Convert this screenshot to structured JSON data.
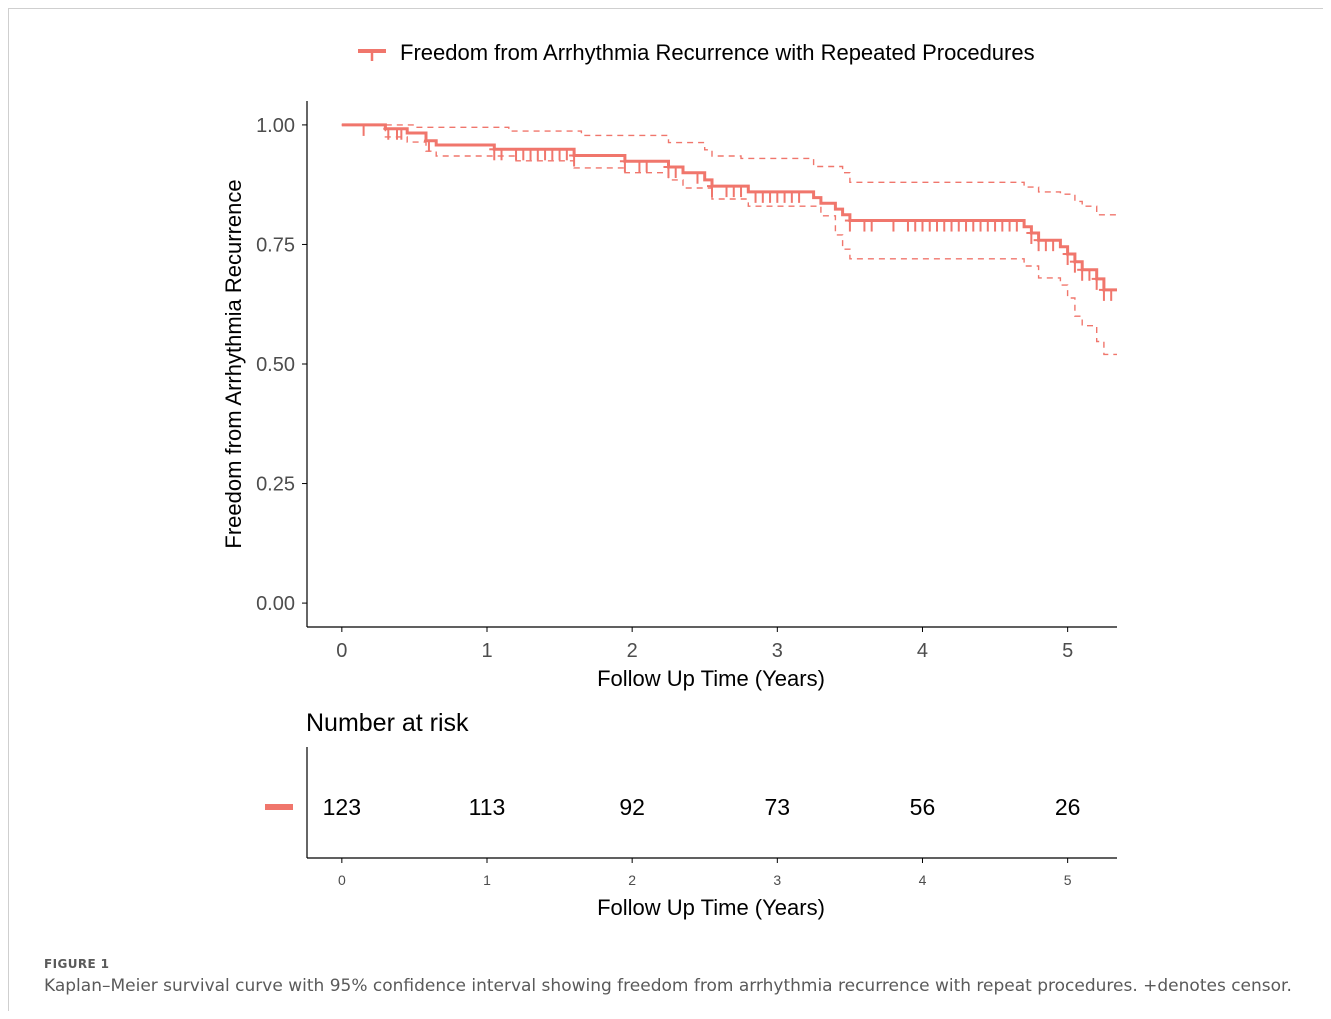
{
  "figure": {
    "label": "FIGURE 1",
    "caption": "Kaplan–Meier survival curve with 95% confidence interval showing freedom from arrhythmia recurrence with repeat procedures. +denotes censor."
  },
  "colors": {
    "series": "#f0766c",
    "axis": "#000000",
    "tick_text": "#4d4d4d",
    "caption": "#5a5a5a"
  },
  "chart_data": [
    {
      "type": "line",
      "subtype": "kaplan-meier step curve with 95% CI and censor marks",
      "legend": {
        "position": "top",
        "entries": [
          "Freedom from Arrhythmia Recurrence with Repeated Procedures"
        ]
      },
      "xlabel": "Follow Up Time (Years)",
      "ylabel": "Freedom from Arrhythmia Recurrence",
      "xlim": [
        -0.24,
        5.34
      ],
      "ylim": [
        -0.05,
        1.05
      ],
      "xticks": [
        "0",
        "1",
        "2",
        "3",
        "4",
        "5"
      ],
      "yticks": [
        "0.00",
        "0.25",
        "0.50",
        "0.75",
        "1.00"
      ],
      "grid": false,
      "series": [
        {
          "name": "Freedom from Arrhythmia Recurrence with Repeated Procedures",
          "style": "solid",
          "points": [
            [
              0,
              1.0
            ],
            [
              0.3,
              1.0
            ],
            [
              0.3,
              0.992
            ],
            [
              0.45,
              0.992
            ],
            [
              0.45,
              0.983
            ],
            [
              0.58,
              0.983
            ],
            [
              0.58,
              0.967
            ],
            [
              0.65,
              0.967
            ],
            [
              0.65,
              0.958
            ],
            [
              1.05,
              0.958
            ],
            [
              1.05,
              0.949
            ],
            [
              1.6,
              0.949
            ],
            [
              1.6,
              0.936
            ],
            [
              1.95,
              0.936
            ],
            [
              1.95,
              0.924
            ],
            [
              2.25,
              0.924
            ],
            [
              2.25,
              0.912
            ],
            [
              2.35,
              0.912
            ],
            [
              2.35,
              0.9
            ],
            [
              2.5,
              0.9
            ],
            [
              2.5,
              0.885
            ],
            [
              2.55,
              0.885
            ],
            [
              2.55,
              0.872
            ],
            [
              2.8,
              0.872
            ],
            [
              2.8,
              0.86
            ],
            [
              3.25,
              0.86
            ],
            [
              3.25,
              0.848
            ],
            [
              3.3,
              0.848
            ],
            [
              3.3,
              0.836
            ],
            [
              3.4,
              0.836
            ],
            [
              3.4,
              0.824
            ],
            [
              3.45,
              0.824
            ],
            [
              3.45,
              0.812
            ],
            [
              3.5,
              0.812
            ],
            [
              3.5,
              0.8
            ],
            [
              4.7,
              0.8
            ],
            [
              4.7,
              0.787
            ],
            [
              4.75,
              0.787
            ],
            [
              4.75,
              0.774
            ],
            [
              4.8,
              0.774
            ],
            [
              4.8,
              0.759
            ],
            [
              4.95,
              0.759
            ],
            [
              4.95,
              0.745
            ],
            [
              5.0,
              0.745
            ],
            [
              5.0,
              0.73
            ],
            [
              5.05,
              0.73
            ],
            [
              5.05,
              0.714
            ],
            [
              5.1,
              0.714
            ],
            [
              5.1,
              0.697
            ],
            [
              5.2,
              0.697
            ],
            [
              5.2,
              0.678
            ],
            [
              5.25,
              0.678
            ],
            [
              5.25,
              0.655
            ],
            [
              5.34,
              0.655
            ]
          ]
        },
        {
          "name": "",
          "style": "dashed",
          "points": [
            [
              0,
              1.0
            ],
            [
              0.5,
              1.0
            ],
            [
              0.5,
              0.995
            ],
            [
              1.15,
              0.995
            ],
            [
              1.15,
              0.987
            ],
            [
              1.65,
              0.987
            ],
            [
              1.65,
              0.978
            ],
            [
              2.25,
              0.978
            ],
            [
              2.25,
              0.963
            ],
            [
              2.5,
              0.963
            ],
            [
              2.5,
              0.948
            ],
            [
              2.55,
              0.948
            ],
            [
              2.55,
              0.935
            ],
            [
              2.75,
              0.935
            ],
            [
              2.75,
              0.93
            ],
            [
              3.25,
              0.93
            ],
            [
              3.25,
              0.913
            ],
            [
              3.45,
              0.913
            ],
            [
              3.45,
              0.9
            ],
            [
              3.5,
              0.9
            ],
            [
              3.5,
              0.88
            ],
            [
              4.7,
              0.88
            ],
            [
              4.7,
              0.87
            ],
            [
              4.8,
              0.87
            ],
            [
              4.8,
              0.86
            ],
            [
              4.95,
              0.86
            ],
            [
              4.95,
              0.855
            ],
            [
              5.05,
              0.855
            ],
            [
              5.05,
              0.84
            ],
            [
              5.1,
              0.84
            ],
            [
              5.1,
              0.83
            ],
            [
              5.2,
              0.83
            ],
            [
              5.2,
              0.812
            ],
            [
              5.34,
              0.812
            ]
          ]
        },
        {
          "name": "",
          "style": "dashed",
          "points": [
            [
              0,
              1.0
            ],
            [
              0.3,
              1.0
            ],
            [
              0.3,
              0.975
            ],
            [
              0.45,
              0.975
            ],
            [
              0.45,
              0.964
            ],
            [
              0.58,
              0.964
            ],
            [
              0.58,
              0.945
            ],
            [
              0.65,
              0.945
            ],
            [
              0.65,
              0.935
            ],
            [
              1.2,
              0.935
            ],
            [
              1.2,
              0.925
            ],
            [
              1.6,
              0.925
            ],
            [
              1.6,
              0.91
            ],
            [
              1.95,
              0.91
            ],
            [
              1.95,
              0.9
            ],
            [
              2.25,
              0.9
            ],
            [
              2.25,
              0.885
            ],
            [
              2.35,
              0.885
            ],
            [
              2.35,
              0.868
            ],
            [
              2.55,
              0.868
            ],
            [
              2.55,
              0.845
            ],
            [
              2.8,
              0.845
            ],
            [
              2.8,
              0.83
            ],
            [
              3.3,
              0.83
            ],
            [
              3.3,
              0.81
            ],
            [
              3.4,
              0.81
            ],
            [
              3.4,
              0.77
            ],
            [
              3.45,
              0.77
            ],
            [
              3.45,
              0.74
            ],
            [
              3.5,
              0.74
            ],
            [
              3.5,
              0.72
            ],
            [
              4.7,
              0.72
            ],
            [
              4.7,
              0.705
            ],
            [
              4.8,
              0.705
            ],
            [
              4.8,
              0.68
            ],
            [
              4.95,
              0.68
            ],
            [
              4.95,
              0.665
            ],
            [
              5.0,
              0.665
            ],
            [
              5.0,
              0.638
            ],
            [
              5.05,
              0.638
            ],
            [
              5.05,
              0.6
            ],
            [
              5.1,
              0.6
            ],
            [
              5.1,
              0.58
            ],
            [
              5.2,
              0.58
            ],
            [
              5.2,
              0.547
            ],
            [
              5.25,
              0.547
            ],
            [
              5.25,
              0.52
            ],
            [
              5.34,
              0.52
            ]
          ]
        }
      ],
      "censor_times": [
        0.15,
        0.32,
        0.38,
        0.41,
        0.6,
        1.05,
        1.1,
        1.2,
        1.25,
        1.3,
        1.35,
        1.4,
        1.45,
        1.5,
        1.55,
        1.6,
        1.95,
        2.05,
        2.1,
        2.25,
        2.3,
        2.45,
        2.55,
        2.65,
        2.7,
        2.75,
        2.85,
        2.9,
        2.95,
        3.0,
        3.05,
        3.1,
        3.15,
        3.5,
        3.6,
        3.65,
        3.8,
        3.9,
        3.95,
        4.0,
        4.05,
        4.1,
        4.15,
        4.2,
        4.25,
        4.3,
        4.35,
        4.4,
        4.45,
        4.5,
        4.55,
        4.6,
        4.65,
        4.75,
        4.8,
        4.85,
        4.9,
        5.0,
        5.05,
        5.1,
        5.15,
        5.2,
        5.25,
        5.3
      ]
    },
    {
      "type": "table",
      "title": "Number at risk",
      "xlabel": "Follow Up Time (Years)",
      "xticks": [
        "0",
        "1",
        "2",
        "3",
        "4",
        "5"
      ],
      "x": [
        0,
        1,
        2,
        3,
        4,
        5
      ],
      "values": [
        "123",
        "113",
        "92",
        "73",
        "56",
        "26"
      ]
    }
  ]
}
